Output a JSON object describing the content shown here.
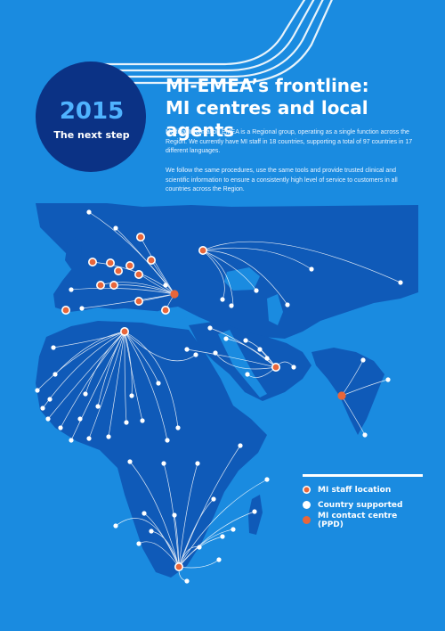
{
  "badge": {
    "year": "2015",
    "subtitle": "The next step"
  },
  "title": {
    "line1": "MI-EMEA’s frontline:",
    "line2": "MI centres and local agents"
  },
  "paragraphs": [
    "Medical Information EMEA is a Regional group, operating as a single function across the Region. We currently have MI staff in 18 countries, supporting a total of 97 countries in 17 different languages.",
    "We follow the same procedures, use the same tools and provide trusted clinical and scientific information to ensure a consistently high level of service to customers in all countries across the Region."
  ],
  "legend": [
    {
      "label": "MI staff location",
      "color": "#e8663a",
      "ring": true
    },
    {
      "label": "Country supported",
      "color": "#ffffff",
      "ring": false
    },
    {
      "label": "MI contact centre (PPD)",
      "color": "#e8663a",
      "ring": false
    }
  ],
  "colors": {
    "background": "#1a8be0",
    "map_land": "#0f5ab8",
    "badge_circle": "#0b3285",
    "staff": "#e8663a",
    "supported": "#ffffff"
  },
  "icons": [
    "world-map-icon",
    "route-lines-icon",
    "decorative-stripes-icon"
  ]
}
